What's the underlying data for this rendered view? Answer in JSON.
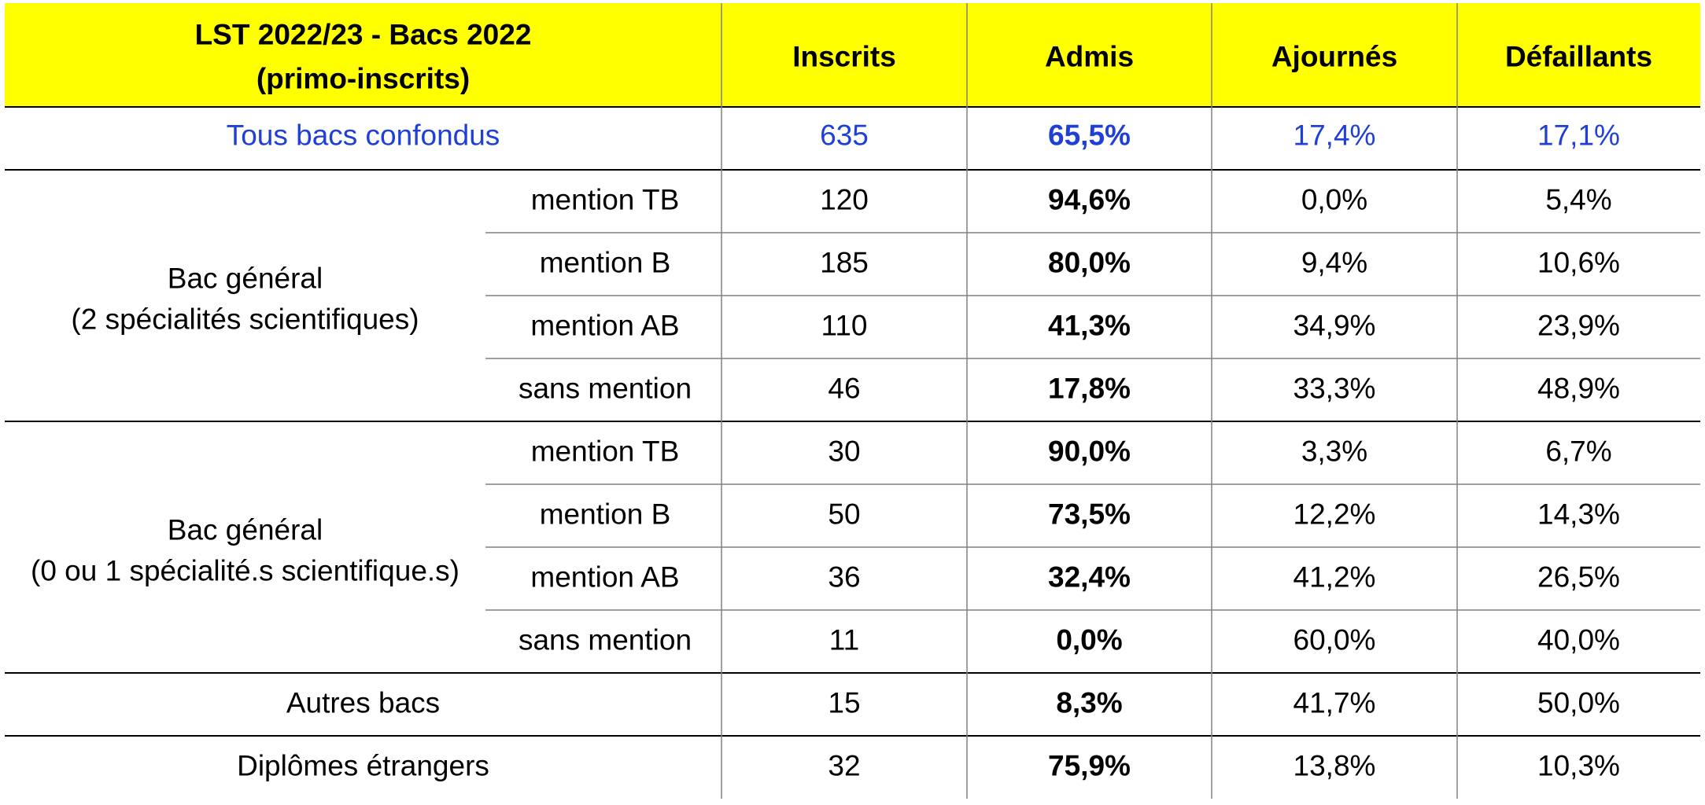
{
  "chart_data": {
    "type": "table",
    "header": {
      "title_line1": "LST 2022/23 - Bacs 2022",
      "title_line2": "(primo-inscrits)",
      "columns": [
        "Inscrits",
        "Admis",
        "Ajournés",
        "Défaillants"
      ]
    },
    "total_row": {
      "label": "Tous bacs confondus",
      "values": [
        "635",
        "65,5%",
        "17,4%",
        "17,1%"
      ],
      "color": "#1f3fd6"
    },
    "groups": [
      {
        "label_line1": "Bac général",
        "label_line2": "(2 spécialités scientifiques)",
        "rows": [
          {
            "sub": "mention TB",
            "values": [
              "120",
              "94,6%",
              "0,0%",
              "5,4%"
            ]
          },
          {
            "sub": "mention B",
            "values": [
              "185",
              "80,0%",
              "9,4%",
              "10,6%"
            ]
          },
          {
            "sub": "mention AB",
            "values": [
              "110",
              "41,3%",
              "34,9%",
              "23,9%"
            ]
          },
          {
            "sub": "sans mention",
            "values": [
              "46",
              "17,8%",
              "33,3%",
              "48,9%"
            ]
          }
        ]
      },
      {
        "label_line1": "Bac général",
        "label_line2": "(0 ou 1 spécialité.s scientifique.s)",
        "rows": [
          {
            "sub": "mention TB",
            "values": [
              "30",
              "90,0%",
              "3,3%",
              "6,7%"
            ]
          },
          {
            "sub": "mention B",
            "values": [
              "50",
              "73,5%",
              "12,2%",
              "14,3%"
            ]
          },
          {
            "sub": "mention AB",
            "values": [
              "36",
              "32,4%",
              "41,2%",
              "26,5%"
            ]
          },
          {
            "sub": "sans mention",
            "values": [
              "11",
              "0,0%",
              "60,0%",
              "40,0%"
            ]
          }
        ]
      }
    ],
    "single_rows": [
      {
        "label": "Autres bacs",
        "values": [
          "15",
          "8,3%",
          "41,7%",
          "50,0%"
        ]
      },
      {
        "label": "Diplômes étrangers",
        "values": [
          "32",
          "75,9%",
          "13,8%",
          "10,3%"
        ]
      }
    ],
    "header_color": "#ffff00"
  }
}
